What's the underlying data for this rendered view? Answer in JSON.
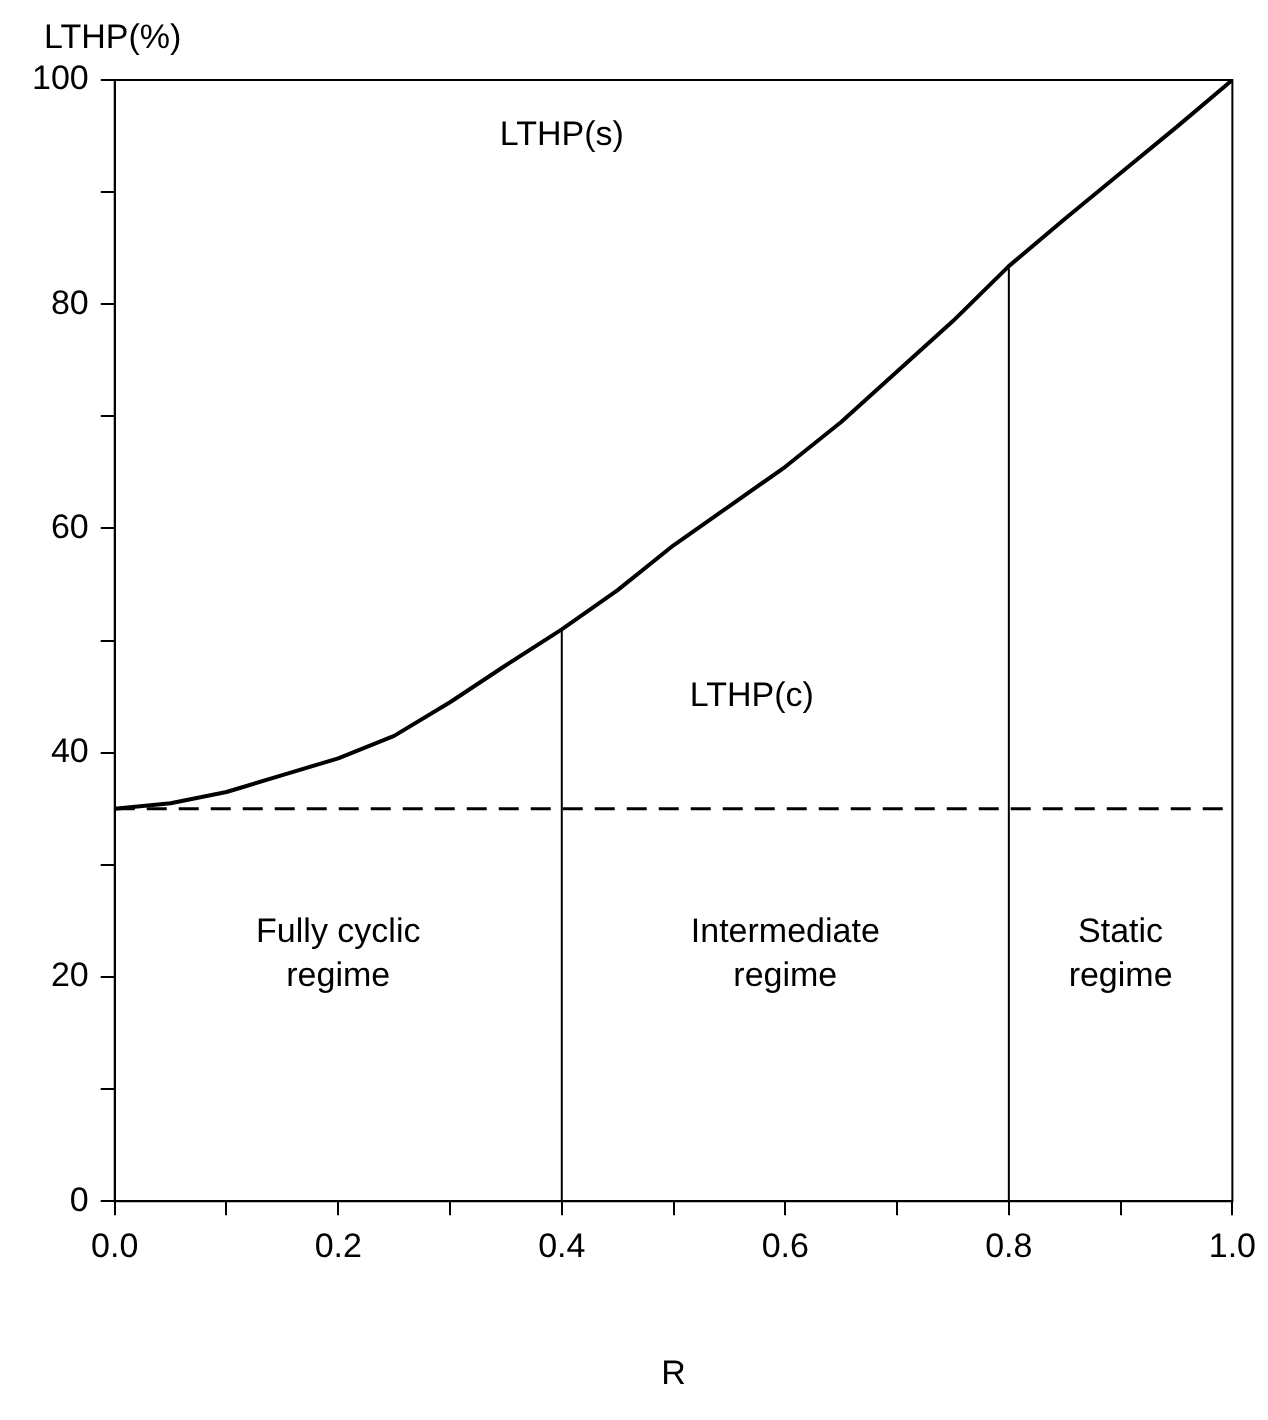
{
  "chart_data": {
    "type": "line",
    "xlabel": "R",
    "ylabel": "LTHP(%)",
    "xlim": [
      0,
      1
    ],
    "ylim": [
      0,
      100
    ],
    "xticks": [
      {
        "value": 0,
        "label": "0.0"
      },
      {
        "value": 0.1,
        "label": null
      },
      {
        "value": 0.2,
        "label": "0.2"
      },
      {
        "value": 0.3,
        "label": null
      },
      {
        "value": 0.4,
        "label": "0.4"
      },
      {
        "value": 0.5,
        "label": null
      },
      {
        "value": 0.6,
        "label": "0.6"
      },
      {
        "value": 0.7,
        "label": null
      },
      {
        "value": 0.8,
        "label": "0.8"
      },
      {
        "value": 0.9,
        "label": null
      },
      {
        "value": 1,
        "label": "1.0"
      }
    ],
    "yticks": [
      0,
      {
        "value": 10,
        "label": null
      },
      20,
      {
        "value": 30,
        "label": null
      },
      40,
      {
        "value": 50,
        "label": null
      },
      60,
      {
        "value": 70,
        "label": null
      },
      80,
      {
        "value": 90,
        "label": null
      },
      100
    ],
    "series": [
      {
        "color": "#000000",
        "x": [
          0,
          0.05,
          0.1,
          0.15,
          0.2,
          0.25,
          0.3,
          0.35,
          0.4,
          0.45,
          0.5,
          0.55,
          0.6,
          0.65,
          0.7,
          0.75,
          0.8,
          0.85,
          0.9,
          0.95,
          1
        ],
        "values": [
          35,
          35.5,
          36.5,
          38,
          39.5,
          41.5,
          44.5,
          47.8,
          51,
          54.5,
          58.5,
          62,
          65.5,
          69.5,
          74,
          78.5,
          83.4,
          87.6,
          91.7,
          95.8,
          100
        ]
      }
    ],
    "ref_lines": [
      {
        "axis": "y",
        "value": 35,
        "line_style": "dashed",
        "color": "#000000"
      },
      {
        "axis": "x",
        "value": 0.4,
        "color": "#000000"
      },
      {
        "axis": "x",
        "value": 0.8,
        "color": "#000000"
      }
    ],
    "annotations": [
      "LTHP(s)",
      "LTHP(c)",
      "Fully cyclic regime",
      "Intermediate regime",
      "Static regime"
    ],
    "legend": false,
    "marker": "none",
    "line_style": "solid"
  }
}
